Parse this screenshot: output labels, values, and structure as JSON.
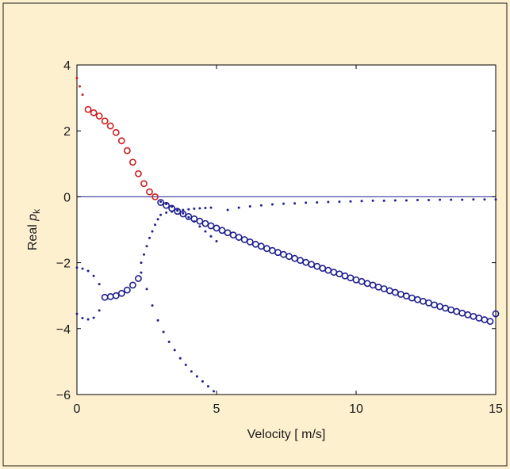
{
  "chart_data": {
    "type": "scatter",
    "xlabel": "Velocity [ m/s]",
    "ylabel": {
      "text": "Real ",
      "symbol": "p",
      "subscript": "k"
    },
    "xlim": [
      0,
      15
    ],
    "ylim": [
      -6,
      4
    ],
    "xticks": [
      "0",
      "5",
      "10",
      "15"
    ],
    "yticks": [
      "4",
      "2",
      "0",
      "−2",
      "−4",
      "−6"
    ],
    "xtick_values": [
      0,
      5,
      10,
      15
    ],
    "ytick_values": [
      4,
      2,
      0,
      -2,
      -4,
      -6
    ],
    "grid": false,
    "reference_line": {
      "y": 0,
      "color": "#1f1f8f"
    },
    "series": [
      {
        "marker": "dot",
        "color": "#cc1f1f",
        "x": [
          0,
          0.1,
          0.2
        ],
        "y": [
          3.6,
          3.35,
          3.1
        ]
      },
      {
        "marker": "circle",
        "color": "#cc1f1f",
        "x": [
          0.4,
          0.6,
          0.8,
          1.0,
          1.2,
          1.4,
          1.6,
          1.8,
          2.0,
          2.2,
          2.4,
          2.6,
          2.8
        ],
        "y": [
          2.65,
          2.55,
          2.45,
          2.3,
          2.15,
          1.95,
          1.7,
          1.4,
          1.05,
          0.7,
          0.4,
          0.15,
          0.0
        ]
      },
      {
        "marker": "circle",
        "color": "#1f1f8f",
        "x": [
          3.0,
          3.2,
          3.4,
          3.6,
          3.8,
          4.0,
          4.2,
          4.4,
          4.6,
          4.8,
          5.0,
          5.2,
          5.4,
          5.6,
          5.8,
          6.0,
          6.2,
          6.4,
          6.6,
          6.8,
          7.0,
          7.2,
          7.4,
          7.6,
          7.8,
          8.0,
          8.2,
          8.4,
          8.6,
          8.8,
          9.0,
          9.2,
          9.4,
          9.6,
          9.8,
          10.0,
          10.2,
          10.4,
          10.6,
          10.8,
          11.0,
          11.2,
          11.4,
          11.6,
          11.8,
          12.0,
          12.2,
          12.4,
          12.6,
          12.8,
          13.0,
          13.2,
          13.4,
          13.6,
          13.8,
          14.0,
          14.2,
          14.4,
          14.6,
          14.8,
          15.0
        ],
        "y": [
          -0.17,
          -0.26,
          -0.35,
          -0.44,
          -0.52,
          -0.6,
          -0.67,
          -0.74,
          -0.81,
          -0.88,
          -0.95,
          -1.02,
          -1.09,
          -1.16,
          -1.23,
          -1.3,
          -1.37,
          -1.44,
          -1.5,
          -1.57,
          -1.63,
          -1.69,
          -1.75,
          -1.81,
          -1.87,
          -1.93,
          -1.99,
          -2.05,
          -2.11,
          -2.17,
          -2.23,
          -2.29,
          -2.34,
          -2.4,
          -2.46,
          -2.52,
          -2.57,
          -2.63,
          -2.68,
          -2.74,
          -2.79,
          -2.85,
          -2.9,
          -2.96,
          -3.01,
          -3.07,
          -3.12,
          -3.17,
          -3.22,
          -3.28,
          -3.33,
          -3.38,
          -3.43,
          -3.48,
          -3.53,
          -3.58,
          -3.63,
          -3.68,
          -3.73,
          -3.78,
          -3.55
        ]
      },
      {
        "marker": "dot",
        "color": "#1f1f8f",
        "x": [
          3.0,
          3.2,
          3.4,
          3.6,
          3.8,
          4.0,
          4.2,
          4.4,
          4.6,
          4.8,
          5.0,
          5.4,
          5.8,
          6.2,
          6.6,
          7.0,
          7.4,
          7.8,
          8.2,
          8.6,
          9.0,
          9.4,
          9.8,
          10.2,
          10.6,
          11.0,
          11.4,
          11.8,
          12.2,
          12.6,
          13.0,
          13.4,
          13.8,
          14.2,
          14.6,
          15.0
        ],
        "y": [
          -0.15,
          -0.22,
          -0.3,
          -0.4,
          -0.5,
          -0.62,
          -0.75,
          -0.9,
          -1.05,
          -1.2,
          -1.35,
          -0.4,
          -0.33,
          -0.29,
          -0.26,
          -0.23,
          -0.21,
          -0.2,
          -0.18,
          -0.17,
          -0.16,
          -0.15,
          -0.14,
          -0.13,
          -0.12,
          -0.12,
          -0.11,
          -0.11,
          -0.1,
          -0.1,
          -0.09,
          -0.09,
          -0.09,
          -0.08,
          -0.08,
          -0.08
        ]
      },
      {
        "marker": "dot",
        "color": "#1f1f8f",
        "x": [
          2.3,
          2.4,
          2.5,
          2.6,
          2.7,
          2.8,
          2.9,
          3.0,
          3.2,
          3.4,
          3.6,
          3.8,
          4.0,
          4.2,
          4.4,
          4.6,
          4.8
        ],
        "y": [
          -2.0,
          -1.75,
          -1.5,
          -1.25,
          -1.05,
          -0.85,
          -0.68,
          -0.55,
          -0.48,
          -0.45,
          -0.42,
          -0.4,
          -0.38,
          -0.36,
          -0.35,
          -0.34,
          -0.33
        ]
      },
      {
        "marker": "dot",
        "color": "#1f1f8f",
        "x": [
          0,
          0.2,
          0.4,
          0.6,
          0.8
        ],
        "y": [
          -2.15,
          -2.18,
          -2.25,
          -2.4,
          -2.65
        ]
      },
      {
        "marker": "circle",
        "color": "#1f1f8f",
        "x": [
          1.0,
          1.2,
          1.4,
          1.6,
          1.8,
          2.0,
          2.2
        ],
        "y": [
          -3.05,
          -3.03,
          -3.0,
          -2.93,
          -2.83,
          -2.68,
          -2.48
        ]
      },
      {
        "marker": "dot",
        "color": "#1f1f8f",
        "x": [
          0,
          0.2,
          0.4,
          0.6,
          0.8
        ],
        "y": [
          -3.55,
          -3.68,
          -3.72,
          -3.67,
          -3.45
        ]
      },
      {
        "marker": "dot",
        "color": "#1f1f8f",
        "x": [
          2.3,
          2.5,
          2.7,
          2.9,
          3.1,
          3.3,
          3.5,
          3.7,
          3.9,
          4.1,
          4.3,
          4.5,
          4.7,
          4.9
        ],
        "y": [
          -2.3,
          -2.8,
          -3.3,
          -3.75,
          -4.1,
          -4.4,
          -4.65,
          -4.9,
          -5.1,
          -5.3,
          -5.45,
          -5.6,
          -5.75,
          -5.9
        ]
      }
    ]
  }
}
